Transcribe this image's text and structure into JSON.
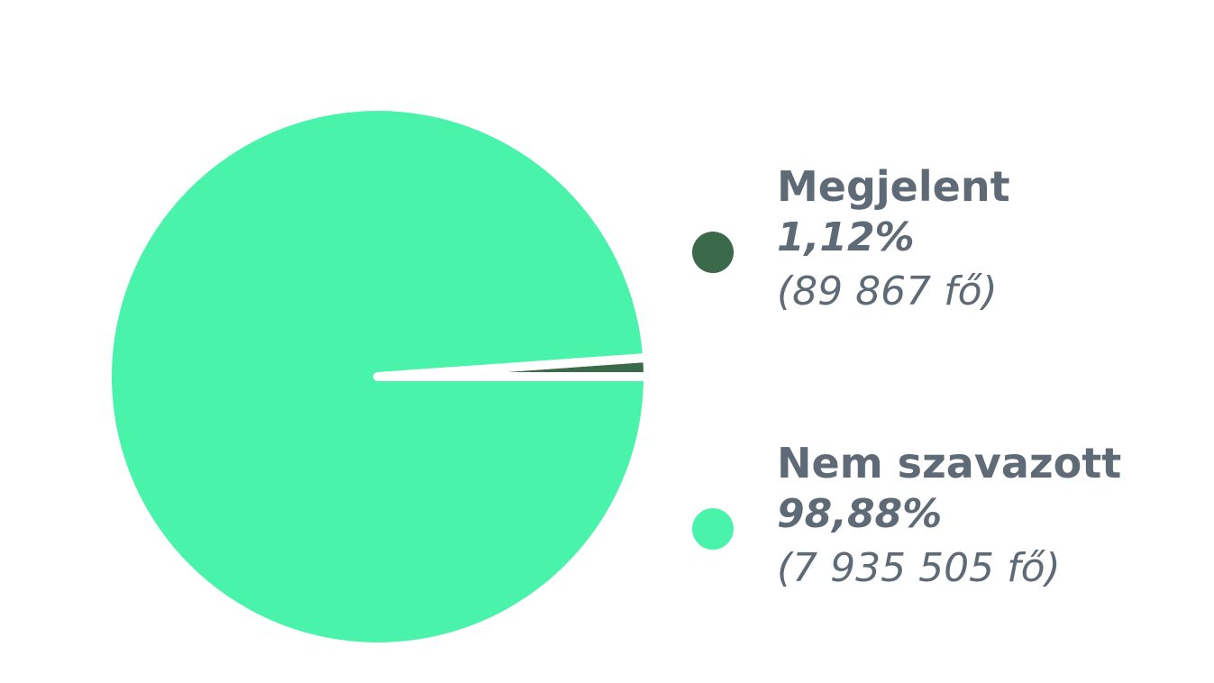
{
  "chart_data": {
    "type": "pie",
    "slices": [
      {
        "label": "Megjelent",
        "percent_label": "1,12%",
        "count_label": "(89 867 fő)",
        "value": 89867,
        "percent": 1.12,
        "color": "#3b6a4b"
      },
      {
        "label": "Nem szavazott",
        "percent_label": "98,88%",
        "count_label": "(7 935 505 fő)",
        "value": 7935505,
        "percent": 98.88,
        "color": "#4af3aa"
      }
    ],
    "legend_placement": "right"
  }
}
